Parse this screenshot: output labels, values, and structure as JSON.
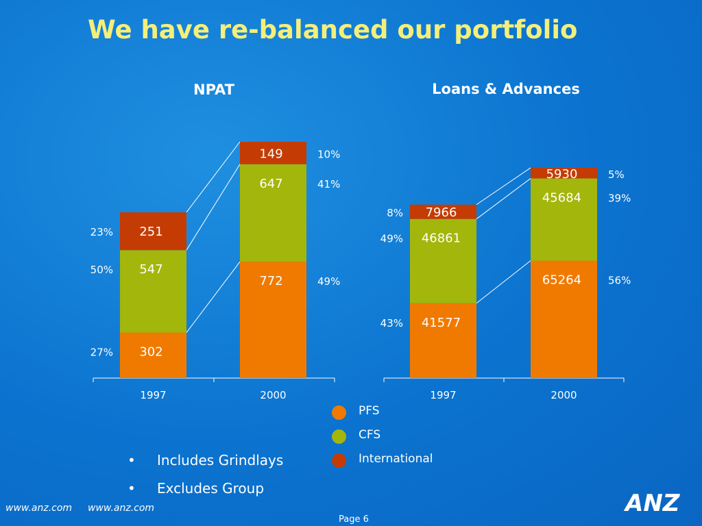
{
  "slide": {
    "title": "We have re-balanced our portfolio",
    "page": "Page 6",
    "footer_urls": [
      "www.anz.com",
      "www.anz.com"
    ],
    "logo_text": "ANZ"
  },
  "colors": {
    "PFS": "#f07a00",
    "CFS": "#a2b60c",
    "International": "#c43c04"
  },
  "legend": [
    {
      "name": "PFS",
      "color": "#f07a00"
    },
    {
      "name": "CFS",
      "color": "#a2b60c"
    },
    {
      "name": "International",
      "color": "#c43c04"
    }
  ],
  "notes": [
    "Includes Grindlays",
    "Excludes Group"
  ],
  "bullet_char": "•",
  "chart_data": [
    {
      "type": "bar",
      "stacked": true,
      "title": "NPAT",
      "categories": [
        "1997",
        "2000"
      ],
      "series": [
        {
          "name": "PFS",
          "values": [
            302,
            772
          ],
          "percent_labels": [
            "27%",
            "49%"
          ]
        },
        {
          "name": "CFS",
          "values": [
            547,
            647
          ],
          "percent_labels": [
            "50%",
            "41%"
          ]
        },
        {
          "name": "International",
          "values": [
            251,
            149
          ],
          "percent_labels": [
            "23%",
            "10%"
          ]
        }
      ],
      "ylim": [
        0,
        1568
      ]
    },
    {
      "type": "bar",
      "stacked": true,
      "title": "Loans & Advances",
      "categories": [
        "1997",
        "2000"
      ],
      "series": [
        {
          "name": "PFS",
          "values": [
            41577,
            65264
          ],
          "percent_labels": [
            "43%",
            "56%"
          ]
        },
        {
          "name": "CFS",
          "values": [
            46861,
            45684
          ],
          "percent_labels": [
            "49%",
            "39%"
          ]
        },
        {
          "name": "International",
          "values": [
            7966,
            5930
          ],
          "percent_labels": [
            "8%",
            "5%"
          ]
        }
      ],
      "ylim": [
        0,
        126000
      ]
    }
  ]
}
